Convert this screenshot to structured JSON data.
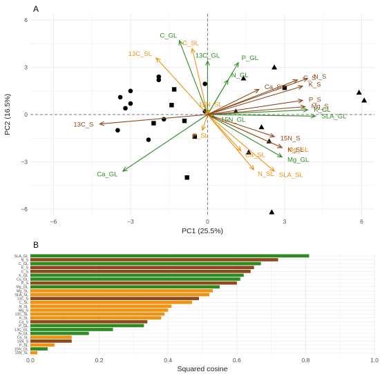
{
  "colors": {
    "GL": "#2e8b22",
    "SL": "#f29010",
    "S": "#8e4a1c",
    "grid": "#ebebeb",
    "zero_line": "#777777",
    "points": "#000000"
  },
  "chart_data": [
    {
      "panel": "A",
      "type": "scatter",
      "title": "",
      "xlabel": "PC1 (25.5%)",
      "ylabel": "PC2 (16.5%)",
      "xlim": [
        -6.9,
        6.5
      ],
      "ylim": [
        -6.4,
        6.4
      ],
      "xticks": [
        -6,
        -3,
        0,
        3,
        6
      ],
      "yticks": [
        -6,
        -3,
        0,
        3,
        6
      ],
      "xtick_labels": [
        "−6",
        "−3",
        "0",
        "3",
        "6"
      ],
      "ytick_labels": [
        "−6",
        "−3",
        "0",
        "3",
        "6"
      ],
      "grid": true,
      "zero_lines": "dashed",
      "point_groups": [
        {
          "shape": "circle",
          "points": [
            [
              -3.4,
              1.1
            ],
            [
              -3.0,
              1.5
            ],
            [
              -3.0,
              0.7
            ],
            [
              -3.2,
              0.4
            ],
            [
              -3.5,
              -1.0
            ],
            [
              -1.9,
              2.4
            ],
            [
              -1.9,
              2.2
            ],
            [
              -0.1,
              1.95
            ],
            [
              -1.7,
              -0.3
            ],
            [
              -2.3,
              -1.6
            ],
            [
              -0.1,
              0.2
            ]
          ]
        },
        {
          "shape": "square",
          "points": [
            [
              -1.3,
              1.6
            ],
            [
              -1.4,
              0.6
            ],
            [
              -2.1,
              -0.55
            ],
            [
              -0.9,
              -0.4
            ],
            [
              -0.8,
              -4.0
            ],
            [
              -0.5,
              -1.4
            ],
            [
              3.0,
              1.7
            ]
          ]
        },
        {
          "shape": "triangle",
          "points": [
            [
              2.6,
              3.0
            ],
            [
              1.4,
              2.3
            ],
            [
              1.1,
              0.2
            ],
            [
              2.1,
              -0.8
            ],
            [
              2.4,
              -1.7
            ],
            [
              1.6,
              -2.4
            ],
            [
              2.5,
              -6.2
            ],
            [
              5.9,
              1.4
            ],
            [
              6.1,
              0.9
            ]
          ]
        }
      ],
      "vectors": [
        {
          "name": "SLA_GL",
          "group": "GL",
          "x": 4.2,
          "y": -0.1
        },
        {
          "name": "K_GL",
          "group": "GL",
          "x": 3.9,
          "y": 0.3
        },
        {
          "name": "Mg_GL",
          "group": "GL",
          "x": 2.9,
          "y": -2.7
        },
        {
          "name": "C_GL",
          "group": "GL",
          "x": -1.1,
          "y": 4.7
        },
        {
          "name": "13C_GL",
          "group": "GL",
          "x": 0.0,
          "y": 3.4
        },
        {
          "name": "P_GL",
          "group": "GL",
          "x": 1.2,
          "y": 3.3
        },
        {
          "name": "N_GL",
          "group": "GL",
          "x": 0.8,
          "y": 2.2
        },
        {
          "name": "15N_GL",
          "group": "GL",
          "x": 0.3,
          "y": -0.2
        },
        {
          "name": "Ca_GL",
          "group": "GL",
          "x": -3.3,
          "y": -3.6
        },
        {
          "name": "C_SL",
          "group": "SL",
          "x": -0.6,
          "y": 4.2
        },
        {
          "name": "13C_SL",
          "group": "SL",
          "x": -2.0,
          "y": 3.6
        },
        {
          "name": "15N_SL",
          "group": "SL",
          "x": 0.05,
          "y": 0.3
        },
        {
          "name": "P_SL",
          "group": "SL",
          "x": -0.2,
          "y": -1.0
        },
        {
          "name": "Ca_SL",
          "group": "SL",
          "x": 1.3,
          "y": -2.3
        },
        {
          "name": "N_SL",
          "group": "SL",
          "x": 1.8,
          "y": -3.5
        },
        {
          "name": "SLA_SL",
          "group": "SL",
          "x": 2.6,
          "y": -3.6
        },
        {
          "name": "Mg_SL",
          "group": "SL",
          "x": 2.9,
          "y": -2.1
        },
        {
          "name": "N_S",
          "group": "S",
          "x": 3.9,
          "y": 2.3
        },
        {
          "name": "K_S",
          "group": "S",
          "x": 3.7,
          "y": 1.8
        },
        {
          "name": "C_S",
          "group": "S",
          "x": 3.5,
          "y": 2.2
        },
        {
          "name": "Ca_S",
          "group": "S",
          "x": 2.0,
          "y": 1.6
        },
        {
          "name": "P_S",
          "group": "S",
          "x": 3.7,
          "y": 0.9
        },
        {
          "name": "Mg_S",
          "group": "S",
          "x": 3.8,
          "y": 0.5
        },
        {
          "name": "15N_S",
          "group": "S",
          "x": 2.6,
          "y": -1.4
        },
        {
          "name": "K_SL",
          "group": "S",
          "x": 2.9,
          "y": -2.1
        },
        {
          "name": "13C_S",
          "group": "S",
          "x": -4.2,
          "y": -0.6
        }
      ]
    },
    {
      "panel": "B",
      "type": "bar",
      "orientation": "horizontal",
      "title": "",
      "xlabel": "Squared cosine",
      "ylabel": "",
      "xlim": [
        0,
        1
      ],
      "xticks": [
        0,
        0.2,
        0.4,
        0.6,
        0.8,
        1.0
      ],
      "xtick_labels": [
        "0.0",
        "0.2",
        "0.4",
        "0.6",
        "0.8",
        "1.0"
      ],
      "grid": true,
      "categories": [
        "SLA_GL",
        "N_S",
        "C_GL",
        "K_S",
        "C_S",
        "K_GL",
        "Ca_GL",
        "P_S",
        "Mg_GL",
        "Mg_SL",
        "SLA_SL",
        "13C_S",
        "C_SL",
        "N_SL",
        "Mg_S",
        "13C_SL",
        "K_SL",
        "Ca_S",
        "P_GL",
        "13C_GL",
        "N_GL",
        "Ca_SL",
        "15N_S",
        "P_SL",
        "15N_GL",
        "15N_SL"
      ],
      "groups": [
        "GL",
        "S",
        "GL",
        "S",
        "S",
        "GL",
        "GL",
        "S",
        "GL",
        "SL",
        "SL",
        "S",
        "SL",
        "SL",
        "SL",
        "SL",
        "SL",
        "S",
        "GL",
        "GL",
        "GL",
        "SL",
        "S",
        "SL",
        "GL",
        "SL"
      ],
      "values": [
        0.81,
        0.72,
        0.67,
        0.65,
        0.64,
        0.62,
        0.61,
        0.6,
        0.55,
        0.53,
        0.52,
        0.49,
        0.47,
        0.41,
        0.4,
        0.39,
        0.38,
        0.34,
        0.33,
        0.24,
        0.17,
        0.12,
        0.12,
        0.07,
        0.05,
        0.02
      ]
    }
  ],
  "panel_a_letter": "A",
  "panel_b_letter": "B"
}
